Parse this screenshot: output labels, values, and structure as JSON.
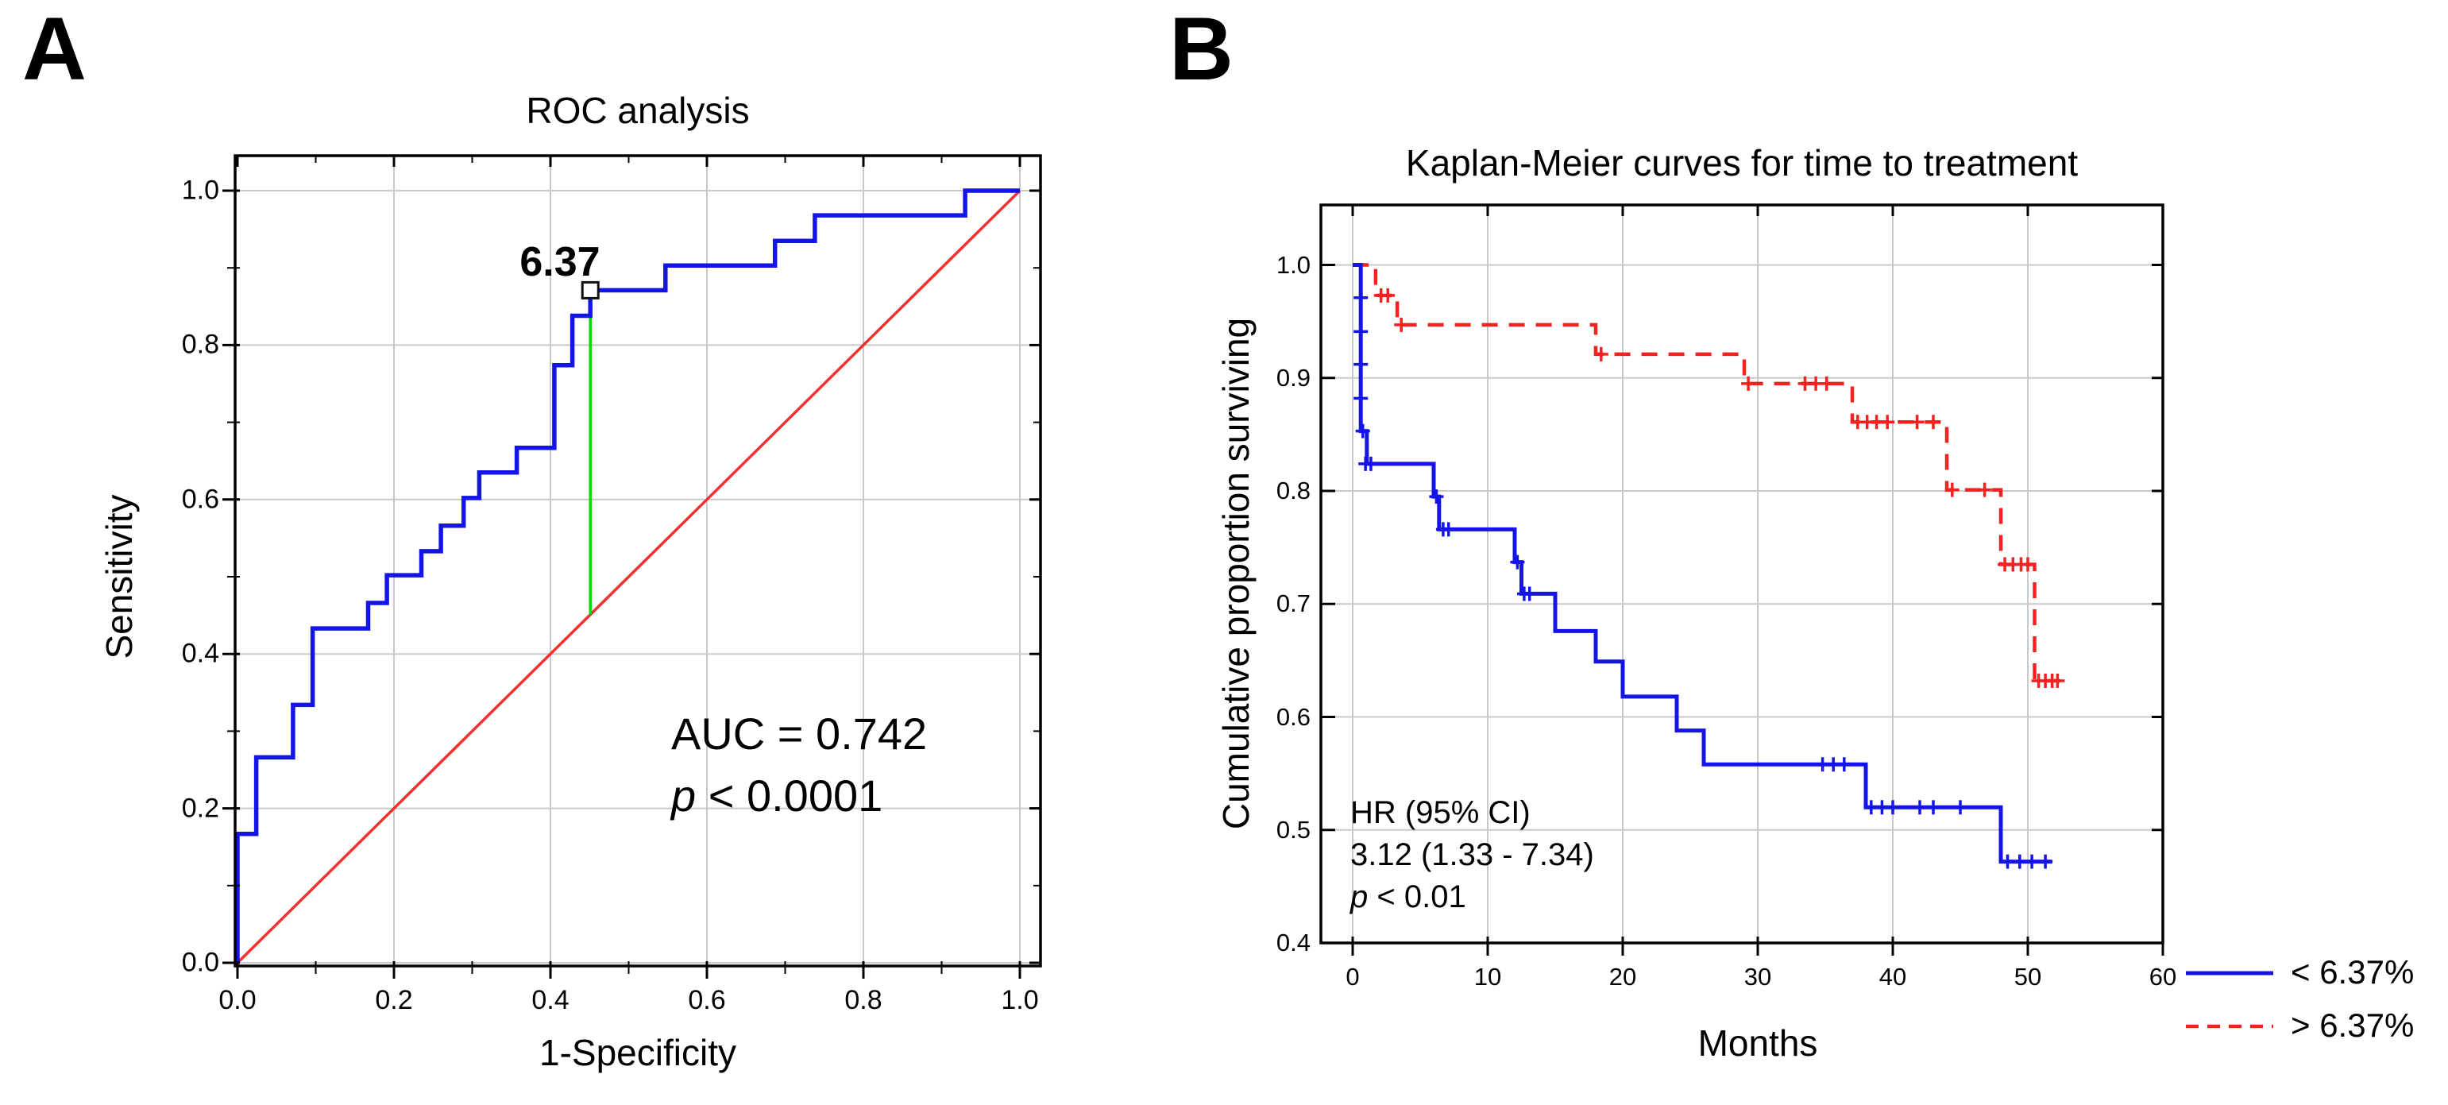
{
  "figure": {
    "panel_a_letter": "A",
    "panel_b_letter": "B"
  },
  "panel_a": {
    "title": "ROC analysis",
    "x_label": "1-Specificity",
    "y_label": "Sensitivity",
    "x_tick_labels": [
      "0.0",
      "0.2",
      "0.4",
      "0.6",
      "0.8",
      "1.0"
    ],
    "y_tick_labels": [
      "0.0",
      "0.2",
      "0.4",
      "0.6",
      "0.8",
      "1.0"
    ],
    "cutpoint_label": "6.37",
    "annotation": {
      "auc_text": "AUC = 0.742",
      "p_symbol": "p",
      "p_rest": " < 0.0001"
    }
  },
  "panel_b": {
    "title": "Kaplan-Meier curves for time to treatment",
    "x_label": "Months",
    "y_label": "Cumulative proportion surviving",
    "x_tick_labels": [
      "0",
      "10",
      "20",
      "30",
      "40",
      "50",
      "60"
    ],
    "y_tick_labels": [
      "0.4",
      "0.5",
      "0.6",
      "0.7",
      "0.8",
      "0.9",
      "1.0"
    ],
    "annotation": {
      "line1": "HR (95% CI)",
      "line2": "3.12 (1.33 - 7.34)",
      "p_symbol": "p",
      "p_rest": " < 0.01"
    },
    "legend": [
      {
        "label": "< 6.37%",
        "style": "solid",
        "color": "#1414e8"
      },
      {
        "label": "> 6.37%",
        "style": "dashed",
        "color": "#f52020"
      }
    ]
  },
  "colors": {
    "roc_curve": "#1414e8",
    "diagonal": "#f43131",
    "cut_line": "#00d900",
    "km_low": "#1414e8",
    "km_high": "#f52020",
    "grid": "#c9c9c9",
    "frame": "#000000"
  },
  "chart_data": [
    {
      "type": "line",
      "title": "ROC analysis",
      "xlabel": "1-Specificity",
      "ylabel": "Sensitivity",
      "xlim": [
        0,
        1
      ],
      "ylim": [
        0,
        1
      ],
      "x_ticks": [
        0,
        0.2,
        0.4,
        0.6,
        0.8,
        1.0
      ],
      "y_ticks": [
        0,
        0.2,
        0.4,
        0.6,
        0.8,
        1.0
      ],
      "grid": true,
      "legend_position": "none",
      "series": [
        {
          "name": "ROC curve",
          "color": "#1414e8",
          "style": "step",
          "points": [
            [
              0,
              0
            ],
            [
              0,
              0.167
            ],
            [
              0.024,
              0.167
            ],
            [
              0.024,
              0.266
            ],
            [
              0.071,
              0.266
            ],
            [
              0.071,
              0.334
            ],
            [
              0.096,
              0.334
            ],
            [
              0.096,
              0.433
            ],
            [
              0.167,
              0.433
            ],
            [
              0.167,
              0.466
            ],
            [
              0.191,
              0.466
            ],
            [
              0.191,
              0.502
            ],
            [
              0.235,
              0.502
            ],
            [
              0.235,
              0.533
            ],
            [
              0.26,
              0.533
            ],
            [
              0.26,
              0.566
            ],
            [
              0.289,
              0.566
            ],
            [
              0.289,
              0.602
            ],
            [
              0.309,
              0.602
            ],
            [
              0.309,
              0.635
            ],
            [
              0.357,
              0.635
            ],
            [
              0.357,
              0.667
            ],
            [
              0.405,
              0.667
            ],
            [
              0.405,
              0.774
            ],
            [
              0.428,
              0.774
            ],
            [
              0.428,
              0.838
            ],
            [
              0.451,
              0.838
            ],
            [
              0.451,
              0.871
            ],
            [
              0.547,
              0.871
            ],
            [
              0.547,
              0.903
            ],
            [
              0.687,
              0.903
            ],
            [
              0.687,
              0.935
            ],
            [
              0.738,
              0.935
            ],
            [
              0.738,
              0.968
            ],
            [
              0.93,
              0.968
            ],
            [
              0.93,
              1
            ],
            [
              1,
              1
            ]
          ]
        },
        {
          "name": "Chance diagonal",
          "color": "#f43131",
          "style": "line",
          "points": [
            [
              0,
              0
            ],
            [
              1,
              1
            ]
          ]
        }
      ],
      "cutpoint": {
        "x": 0.451,
        "y": 0.871,
        "label": "6.37",
        "line_from_y": 0.451,
        "line_color": "#00d900"
      },
      "annotations": [
        "AUC = 0.742",
        "p < 0.0001"
      ]
    },
    {
      "type": "line",
      "title": "Kaplan-Meier curves for time to treatment",
      "xlabel": "Months",
      "ylabel": "Cumulative proportion surviving",
      "xlim": [
        0,
        60
      ],
      "ylim": [
        0.4,
        1.05
      ],
      "x_ticks": [
        0,
        10,
        20,
        30,
        40,
        50,
        60
      ],
      "y_ticks": [
        0.4,
        0.5,
        0.6,
        0.7,
        0.8,
        0.9,
        1.0
      ],
      "grid": true,
      "legend_position": "outside-right-bottom",
      "series": [
        {
          "name": "< 6.37%",
          "color": "#1414e8",
          "style": "step-solid",
          "points": [
            [
              0,
              1.0
            ],
            [
              0.6,
              1.0
            ],
            [
              0.6,
              0.853
            ],
            [
              1.05,
              0.853
            ],
            [
              1.05,
              0.824
            ],
            [
              6,
              0.824
            ],
            [
              6,
              0.795
            ],
            [
              6.4,
              0.795
            ],
            [
              6.4,
              0.766
            ],
            [
              12,
              0.766
            ],
            [
              12,
              0.737
            ],
            [
              12.5,
              0.737
            ],
            [
              12.5,
              0.709
            ],
            [
              15,
              0.709
            ],
            [
              15,
              0.676
            ],
            [
              18,
              0.676
            ],
            [
              18,
              0.649
            ],
            [
              20,
              0.649
            ],
            [
              20,
              0.618
            ],
            [
              24,
              0.618
            ],
            [
              24,
              0.588
            ],
            [
              26,
              0.588
            ],
            [
              26,
              0.558
            ],
            [
              38,
              0.558
            ],
            [
              38,
              0.52
            ],
            [
              48,
              0.52
            ],
            [
              48,
              0.472
            ],
            [
              51.8,
              0.472
            ]
          ],
          "censors": [
            [
              0.6,
              0.971
            ],
            [
              0.6,
              0.941
            ],
            [
              0.6,
              0.912
            ],
            [
              0.6,
              0.882
            ],
            [
              0.75,
              0.853
            ],
            [
              0.95,
              0.824
            ],
            [
              1.35,
              0.824
            ],
            [
              6.2,
              0.795
            ],
            [
              6.7,
              0.766
            ],
            [
              7.1,
              0.766
            ],
            [
              12.2,
              0.737
            ],
            [
              12.7,
              0.709
            ],
            [
              13.1,
              0.709
            ],
            [
              34.8,
              0.558
            ],
            [
              35.6,
              0.558
            ],
            [
              36.4,
              0.558
            ],
            [
              38.4,
              0.52
            ],
            [
              39.2,
              0.52
            ],
            [
              40,
              0.52
            ],
            [
              42,
              0.52
            ],
            [
              43,
              0.52
            ],
            [
              45,
              0.52
            ],
            [
              48.5,
              0.472
            ],
            [
              49.4,
              0.472
            ],
            [
              50.3,
              0.472
            ],
            [
              51.3,
              0.472
            ]
          ]
        },
        {
          "name": "> 6.37%",
          "color": "#f52020",
          "style": "step-dashed",
          "points": [
            [
              0,
              1.0
            ],
            [
              1.7,
              1.0
            ],
            [
              1.7,
              0.973
            ],
            [
              3.3,
              0.973
            ],
            [
              3.3,
              0.947
            ],
            [
              18,
              0.947
            ],
            [
              18,
              0.921
            ],
            [
              29,
              0.921
            ],
            [
              29,
              0.895
            ],
            [
              37,
              0.895
            ],
            [
              37,
              0.861
            ],
            [
              44,
              0.861
            ],
            [
              44,
              0.801
            ],
            [
              48,
              0.801
            ],
            [
              48,
              0.735
            ],
            [
              50.5,
              0.735
            ],
            [
              50.5,
              0.632
            ],
            [
              52.5,
              0.632
            ]
          ],
          "censors": [
            [
              2.1,
              0.973
            ],
            [
              2.6,
              0.973
            ],
            [
              3.6,
              0.947
            ],
            [
              18.4,
              0.921
            ],
            [
              29.3,
              0.895
            ],
            [
              33.5,
              0.895
            ],
            [
              34.3,
              0.895
            ],
            [
              35.1,
              0.895
            ],
            [
              37.4,
              0.861
            ],
            [
              38.1,
              0.861
            ],
            [
              38.8,
              0.861
            ],
            [
              39.6,
              0.861
            ],
            [
              41.8,
              0.861
            ],
            [
              43,
              0.861
            ],
            [
              44.4,
              0.801
            ],
            [
              46.8,
              0.801
            ],
            [
              48.3,
              0.735
            ],
            [
              48.9,
              0.735
            ],
            [
              49.5,
              0.735
            ],
            [
              50,
              0.735
            ],
            [
              50.8,
              0.632
            ],
            [
              51.3,
              0.632
            ],
            [
              51.8,
              0.632
            ],
            [
              52.2,
              0.632
            ]
          ]
        }
      ],
      "annotations": [
        "HR (95% CI)",
        "3.12 (1.33 - 7.34)",
        "p < 0.01"
      ]
    }
  ]
}
